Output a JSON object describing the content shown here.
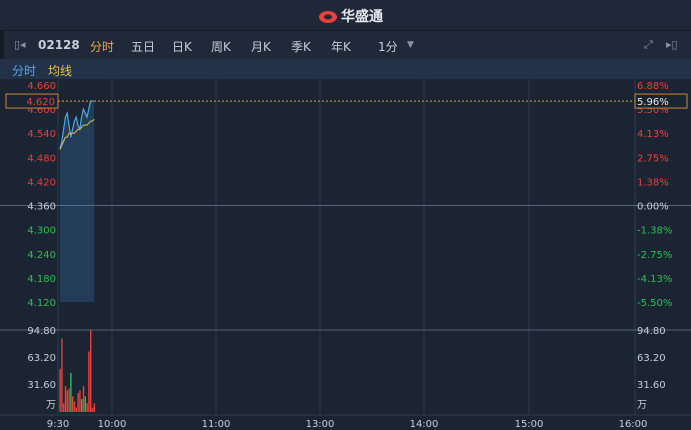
{
  "header": {
    "brand": "华盛通"
  },
  "toolbar": {
    "code": "02128",
    "tabs": [
      "分时",
      "五日",
      "日K",
      "周K",
      "月K",
      "季K",
      "年K"
    ],
    "active": "分时",
    "interval": "1分"
  },
  "legend": {
    "price": "分时",
    "avg": "均线"
  },
  "colors": {
    "up": "#e8413a",
    "down": "#2fbf4e",
    "price": "#4fa8e8",
    "avg": "#e8c248",
    "active": "#e8a93a"
  },
  "chart_data": {
    "type": "line",
    "prev_close": 4.36,
    "ylim": [
      4.12,
      4.66
    ],
    "price_ticks": [
      "4.660",
      "4.600",
      "4.540",
      "4.480",
      "4.420",
      "4.360",
      "4.300",
      "4.240",
      "4.180",
      "4.120"
    ],
    "pct_ticks": [
      "6.88%",
      "5.50%",
      "4.13%",
      "2.75%",
      "1.38%",
      "0.00%",
      "-1.38%",
      "-2.75%",
      "-4.13%",
      "-5.50%"
    ],
    "current_price": "4.620",
    "current_pct": "5.96%",
    "time_ticks": [
      "9:30",
      "10:00",
      "11:00",
      "13:00",
      "14:00",
      "15:00",
      "16:00"
    ],
    "volume_ticks": [
      "94.80",
      "63.20",
      "31.60",
      "万"
    ],
    "volume_max": 94.8,
    "price": [
      4.5,
      4.52,
      4.55,
      4.58,
      4.59,
      4.56,
      4.53,
      4.55,
      4.57,
      4.58,
      4.56,
      4.55,
      4.58,
      4.6,
      4.59,
      4.58,
      4.6,
      4.62,
      4.62,
      4.62
    ],
    "avg": [
      4.5,
      4.51,
      4.52,
      4.53,
      4.53,
      4.54,
      4.54,
      4.54,
      4.54,
      4.545,
      4.55,
      4.55,
      4.555,
      4.56,
      4.56,
      4.56,
      4.565,
      4.57,
      4.57,
      4.575
    ],
    "volume": [
      50,
      85,
      10,
      30,
      25,
      27,
      45,
      18,
      12,
      5,
      22,
      25,
      15,
      30,
      18,
      10,
      70,
      95,
      5,
      10
    ],
    "volume_dir": [
      "up",
      "up",
      "up",
      "up",
      "up",
      "up",
      "down",
      "up",
      "up",
      "up",
      "up",
      "up",
      "down",
      "up",
      "down",
      "up",
      "up",
      "up",
      "up",
      "up"
    ]
  }
}
